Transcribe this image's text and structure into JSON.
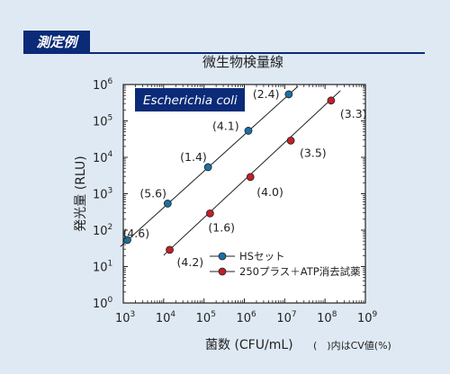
{
  "header": {
    "badge": "測定例"
  },
  "chart_data": {
    "type": "scatter",
    "title": "微生物検量線",
    "xlabel": "菌数 (CFU/mL)",
    "ylabel": "発光量 (RLU)",
    "note": "(　)内はCV値(%)",
    "inset_label": "Escherichia coli",
    "x_scale": "log",
    "y_scale": "log",
    "xlim_exp": [
      3,
      9
    ],
    "ylim_exp": [
      0,
      6
    ],
    "x_ticks_exp": [
      3,
      4,
      5,
      6,
      7,
      8,
      9
    ],
    "y_ticks_exp": [
      0,
      1,
      2,
      3,
      4,
      5,
      6
    ],
    "tick_base": "10",
    "grid": false,
    "legend_position": "bottom-right",
    "series": [
      {
        "name": "HSセット",
        "color": "#1c6ea4",
        "points": [
          {
            "x_exp": 3.1,
            "y_exp": 1.73,
            "label": "(4.6)"
          },
          {
            "x_exp": 4.1,
            "y_exp": 2.73,
            "label": "(5.6)"
          },
          {
            "x_exp": 5.1,
            "y_exp": 3.73,
            "label": "(1.4)"
          },
          {
            "x_exp": 6.1,
            "y_exp": 4.73,
            "label": "(4.1)"
          },
          {
            "x_exp": 7.1,
            "y_exp": 5.73,
            "label": "(2.4)"
          }
        ],
        "fit_exp": [
          [
            2.93,
            1.55
          ],
          [
            7.33,
            5.95
          ]
        ]
      },
      {
        "name": "250プラス＋ATP消去試薬",
        "color": "#c0202a",
        "points": [
          {
            "x_exp": 4.15,
            "y_exp": 1.46,
            "label": "(4.2)"
          },
          {
            "x_exp": 5.15,
            "y_exp": 2.46,
            "label": "(1.6)"
          },
          {
            "x_exp": 6.15,
            "y_exp": 3.46,
            "label": "(4.0)"
          },
          {
            "x_exp": 7.15,
            "y_exp": 4.46,
            "label": "(3.5)"
          },
          {
            "x_exp": 8.15,
            "y_exp": 5.56,
            "label": "(3.3)"
          }
        ],
        "fit_exp": [
          [
            4.0,
            1.31
          ],
          [
            8.38,
            5.83
          ]
        ]
      }
    ]
  }
}
